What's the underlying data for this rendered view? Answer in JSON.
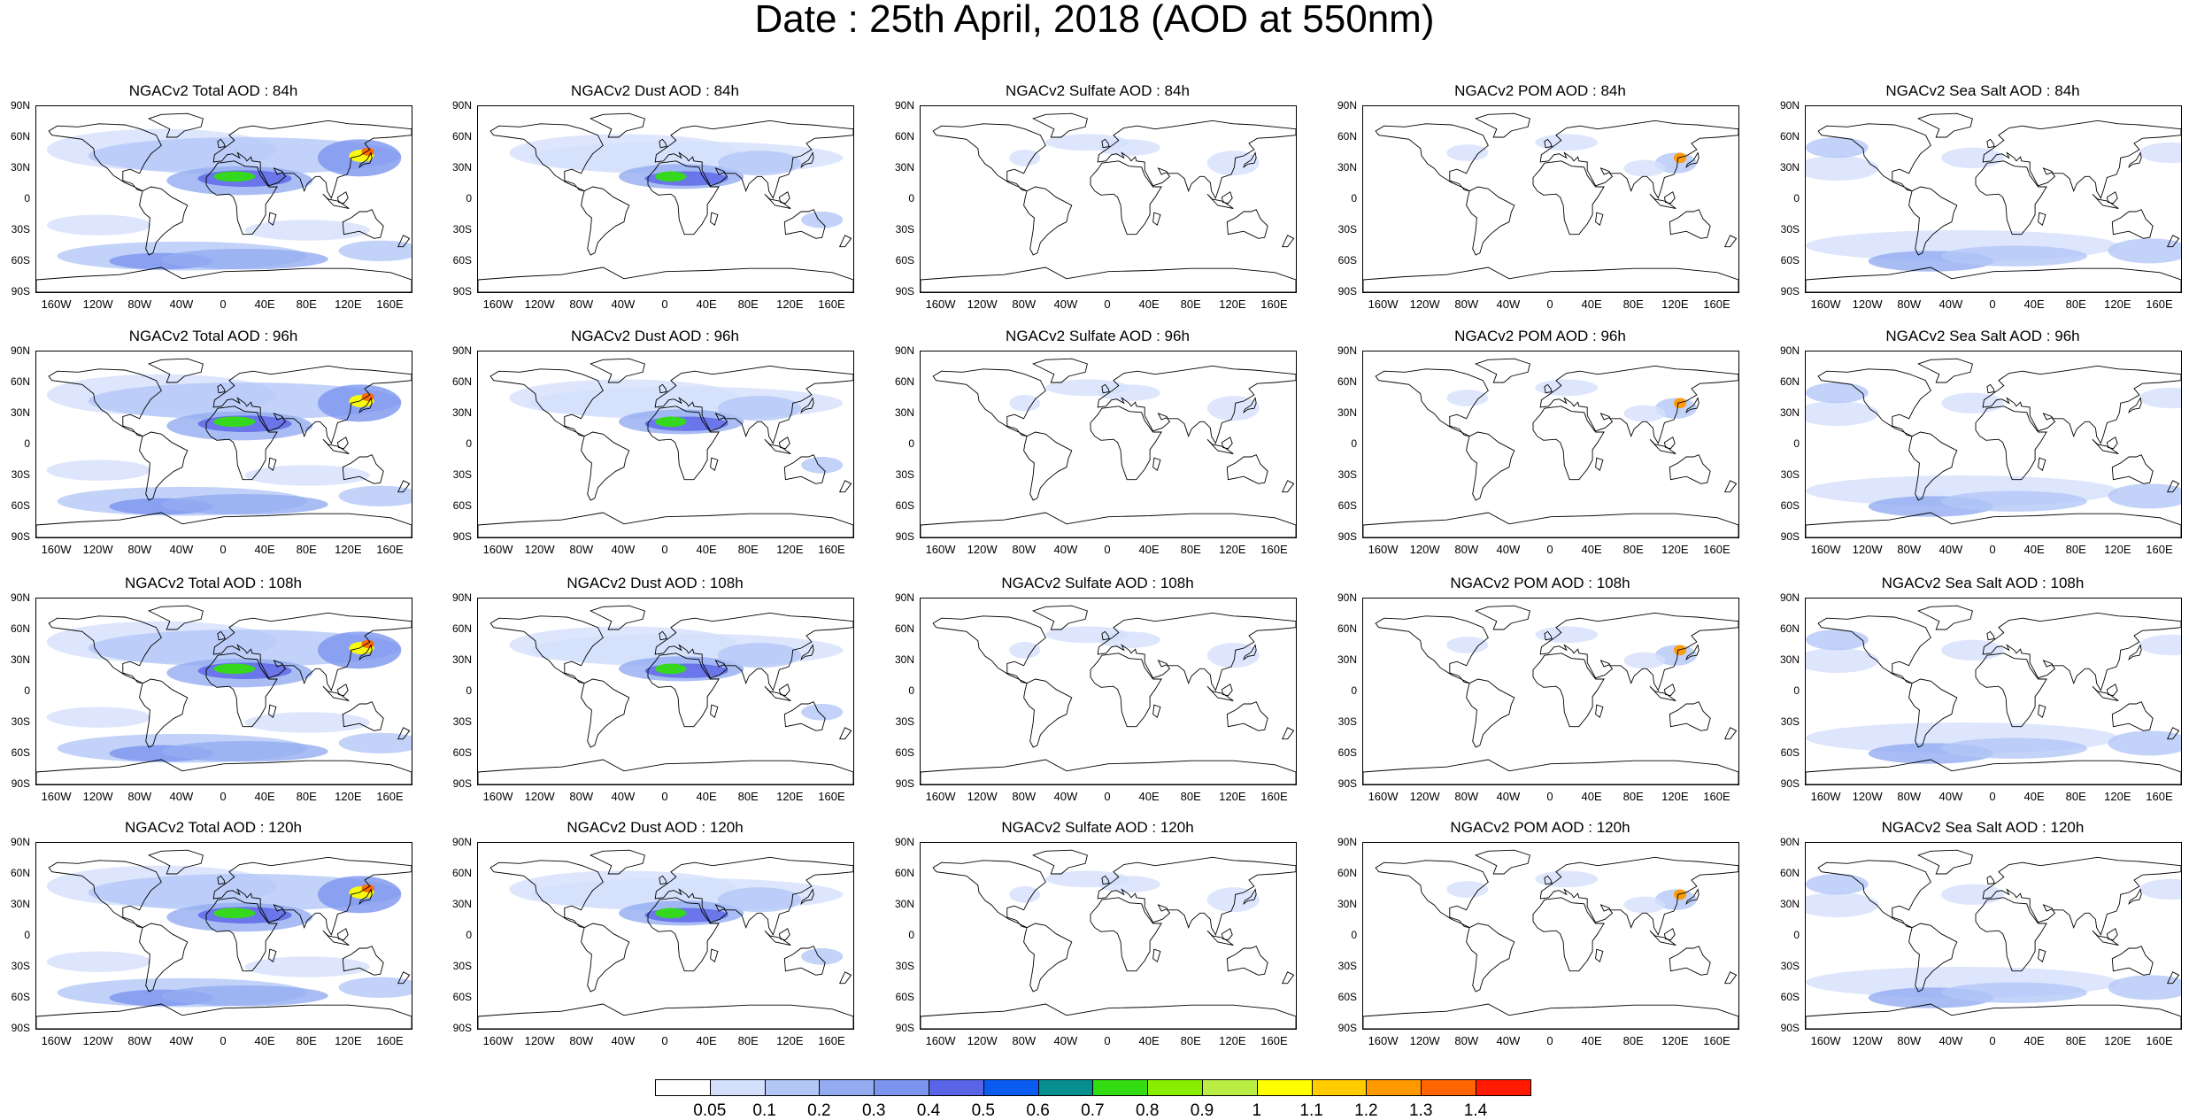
{
  "title": "Date : 25th April, 2018 (AOD at 550nm)",
  "lat_labels": [
    "90N",
    "60N",
    "30N",
    "0",
    "30S",
    "60S",
    "90S"
  ],
  "lon_labels": [
    "160W",
    "120W",
    "80W",
    "40W",
    "0",
    "40E",
    "80E",
    "120E",
    "160E"
  ],
  "panels": [
    {
      "title": "NGACv2 Total AOD : 84h",
      "species": "total",
      "lead": "84h"
    },
    {
      "title": "NGACv2 Dust AOD : 84h",
      "species": "dust",
      "lead": "84h"
    },
    {
      "title": "NGACv2 Sulfate AOD : 84h",
      "species": "sulfate",
      "lead": "84h"
    },
    {
      "title": "NGACv2 POM AOD : 84h",
      "species": "pom",
      "lead": "84h"
    },
    {
      "title": "NGACv2 Sea Salt AOD : 84h",
      "species": "seasalt",
      "lead": "84h"
    },
    {
      "title": "NGACv2 Total AOD : 96h",
      "species": "total",
      "lead": "96h"
    },
    {
      "title": "NGACv2 Dust AOD : 96h",
      "species": "dust",
      "lead": "96h"
    },
    {
      "title": "NGACv2 Sulfate AOD : 96h",
      "species": "sulfate",
      "lead": "96h"
    },
    {
      "title": "NGACv2 POM AOD : 96h",
      "species": "pom",
      "lead": "96h"
    },
    {
      "title": "NGACv2 Sea Salt AOD : 96h",
      "species": "seasalt",
      "lead": "96h"
    },
    {
      "title": "NGACv2 Total AOD : 108h",
      "species": "total",
      "lead": "108h"
    },
    {
      "title": "NGACv2 Dust AOD : 108h",
      "species": "dust",
      "lead": "108h"
    },
    {
      "title": "NGACv2 Sulfate AOD : 108h",
      "species": "sulfate",
      "lead": "108h"
    },
    {
      "title": "NGACv2 POM AOD : 108h",
      "species": "pom",
      "lead": "108h"
    },
    {
      "title": "NGACv2 Sea Salt AOD : 108h",
      "species": "seasalt",
      "lead": "108h"
    },
    {
      "title": "NGACv2 Total AOD : 120h",
      "species": "total",
      "lead": "120h"
    },
    {
      "title": "NGACv2 Dust AOD : 120h",
      "species": "dust",
      "lead": "120h"
    },
    {
      "title": "NGACv2 Sulfate AOD : 120h",
      "species": "sulfate",
      "lead": "120h"
    },
    {
      "title": "NGACv2 POM AOD : 120h",
      "species": "pom",
      "lead": "120h"
    },
    {
      "title": "NGACv2 Sea Salt  AOD : 120h",
      "species": "seasalt",
      "lead": "120h"
    }
  ],
  "colorbar": {
    "labels": [
      "0.05",
      "0.1",
      "0.2",
      "0.3",
      "0.4",
      "0.5",
      "0.6",
      "0.7",
      "0.8",
      "0.9",
      "1",
      "1.1",
      "1.2",
      "1.3",
      "1.4"
    ],
    "colors": [
      "#ffffff",
      "#d4e0fb",
      "#b3c7f6",
      "#93acf1",
      "#7b95ee",
      "#5a64e6",
      "#0a5cf0",
      "#078f8f",
      "#33dd11",
      "#88ee00",
      "#bbee44",
      "#ffff00",
      "#ffcc00",
      "#ff9900",
      "#ff6600",
      "#ff1a00"
    ]
  }
}
